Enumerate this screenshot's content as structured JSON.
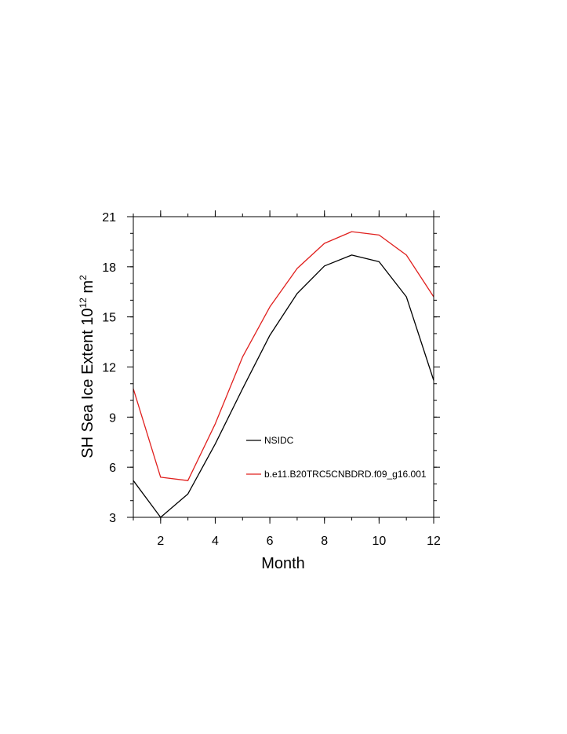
{
  "chart_data": {
    "type": "line",
    "xlabel": "Month",
    "ylabel": {
      "main": "SH Sea Ice Extent 10",
      "exponent1": "12",
      "unit": " m",
      "exponent2": "2"
    },
    "xlim": [
      1,
      12
    ],
    "ylim": [
      3,
      21
    ],
    "xticks": [
      2,
      4,
      6,
      8,
      10,
      12
    ],
    "yticks": [
      3,
      6,
      9,
      12,
      15,
      18,
      21
    ],
    "grid": false,
    "legend_position": "center-right inside plot",
    "x": [
      1,
      2,
      3,
      4,
      5,
      6,
      7,
      8,
      9,
      10,
      11,
      12
    ],
    "series": [
      {
        "name": "NSIDC",
        "color": "#000000",
        "values": [
          5.2,
          3.0,
          4.4,
          7.4,
          10.7,
          13.9,
          16.4,
          18.05,
          18.7,
          18.3,
          16.2,
          11.2
        ]
      },
      {
        "name": "b.e11.B20TRC5CNBDRD.f09_g16.001",
        "color": "#e0201e",
        "values": [
          10.7,
          5.4,
          5.2,
          8.6,
          12.6,
          15.6,
          17.9,
          19.4,
          20.1,
          19.9,
          18.7,
          16.2
        ]
      }
    ]
  }
}
